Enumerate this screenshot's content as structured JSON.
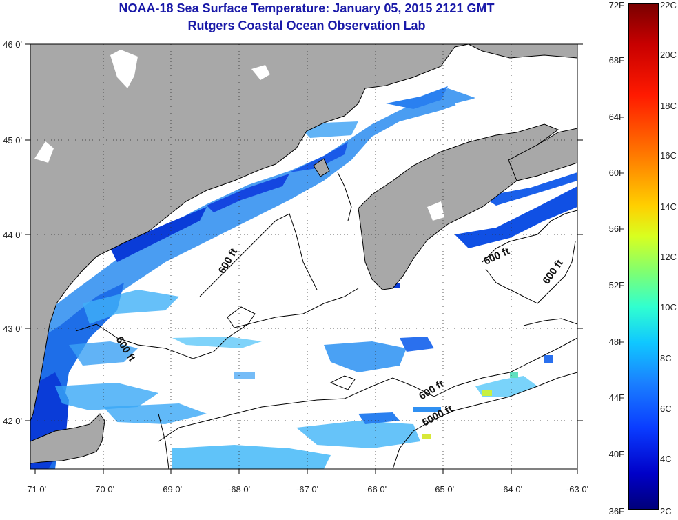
{
  "title": {
    "line1": "NOAA-18 Sea Surface Temperature:  January 05, 2015 2121 GMT",
    "line2": "Rutgers Coastal Ocean Observation Lab"
  },
  "map": {
    "lon_labels": [
      "-71 0'",
      "-70 0'",
      "-69 0'",
      "-68 0'",
      "-67 0'",
      "-66 0'",
      "-65 0'",
      "-64 0'",
      "-63 0'"
    ],
    "lat_labels": [
      "46 0'",
      "45 0'",
      "44 0'",
      "43 0'",
      "42 0'"
    ],
    "contour_labels": [
      "600 ft",
      "600 ft",
      "600 ft",
      "600 ft",
      "600 ft",
      "6000 ft"
    ],
    "colors": {
      "land": "#a8a8a8",
      "cloud": "#ffffff",
      "coast": "#000000"
    }
  },
  "colorbar": {
    "fahrenheit": [
      "72F",
      "68F",
      "64F",
      "60F",
      "56F",
      "52F",
      "48F",
      "44F",
      "40F",
      "36F"
    ],
    "celsius": [
      "22C",
      "20C",
      "18C",
      "16C",
      "14C",
      "12C",
      "10C",
      "8C",
      "6C",
      "4C",
      "2C"
    ]
  }
}
